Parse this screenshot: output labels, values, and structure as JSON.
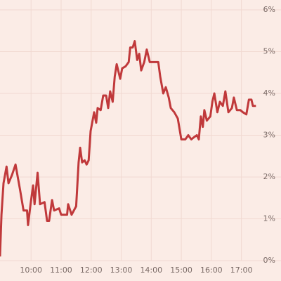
{
  "chart_data": {
    "type": "line",
    "x": [
      "08:58",
      "09:01",
      "09:05",
      "09:11",
      "09:15",
      "09:22",
      "09:29",
      "09:38",
      "09:45",
      "09:52",
      "09:54",
      "09:59",
      "10:04",
      "10:07",
      "10:13",
      "10:18",
      "10:27",
      "10:32",
      "10:36",
      "10:42",
      "10:46",
      "10:56",
      "11:00",
      "11:12",
      "11:14",
      "11:21",
      "11:30",
      "11:35",
      "11:38",
      "11:42",
      "11:47",
      "11:51",
      "11:55",
      "11:59",
      "12:06",
      "12:10",
      "12:13",
      "12:19",
      "12:24",
      "12:30",
      "12:34",
      "12:38",
      "12:43",
      "12:47",
      "12:51",
      "12:58",
      "13:02",
      "13:09",
      "13:15",
      "13:18",
      "13:23",
      "13:27",
      "13:32",
      "13:36",
      "13:40",
      "13:46",
      "13:51",
      "13:57",
      "14:04",
      "14:14",
      "14:18",
      "14:24",
      "14:29",
      "14:35",
      "14:39",
      "14:46",
      "14:53",
      "15:00",
      "15:08",
      "15:14",
      "15:20",
      "15:25",
      "15:31",
      "15:35",
      "15:39",
      "15:43",
      "15:46",
      "15:51",
      "15:58",
      "16:02",
      "16:06",
      "16:12",
      "16:17",
      "16:23",
      "16:28",
      "16:34",
      "16:41",
      "16:45",
      "16:51",
      "16:58",
      "17:03",
      "17:10",
      "17:15",
      "17:20",
      "17:23",
      "17:29"
    ],
    "series": [
      {
        "color": "#c0393b",
        "values": [
          0.1,
          1.1,
          1.85,
          2.25,
          1.85,
          2.05,
          2.3,
          1.7,
          1.2,
          1.2,
          0.85,
          1.35,
          1.8,
          1.35,
          2.1,
          1.35,
          1.4,
          0.95,
          0.95,
          1.45,
          1.2,
          1.25,
          1.1,
          1.1,
          1.35,
          1.1,
          1.3,
          2.35,
          2.7,
          2.35,
          2.4,
          2.3,
          2.4,
          3.1,
          3.55,
          3.3,
          3.65,
          3.6,
          3.95,
          3.95,
          3.65,
          4.05,
          3.8,
          4.4,
          4.7,
          4.35,
          4.6,
          4.65,
          4.75,
          5.1,
          5.1,
          5.25,
          4.8,
          4.95,
          4.55,
          4.75,
          5.05,
          4.75,
          4.75,
          4.75,
          4.4,
          4.0,
          4.15,
          3.9,
          3.65,
          3.55,
          3.4,
          2.9,
          2.9,
          3.0,
          2.9,
          2.95,
          3.0,
          2.9,
          3.45,
          3.2,
          3.6,
          3.35,
          3.45,
          3.8,
          4.0,
          3.55,
          3.8,
          3.7,
          4.05,
          3.55,
          3.65,
          3.9,
          3.6,
          3.6,
          3.55,
          3.5,
          3.85,
          3.85,
          3.7,
          3.7
        ]
      }
    ],
    "xlim": [
      "08:58",
      "17:30"
    ],
    "xticks": [
      "10:00",
      "11:00",
      "12:00",
      "13:00",
      "14:00",
      "15:00",
      "16:00",
      "17:00"
    ],
    "ylim": [
      0,
      6
    ],
    "yticks": [
      {
        "value": 0,
        "label": "0%"
      },
      {
        "value": 1,
        "label": "1%"
      },
      {
        "value": 2,
        "label": "2%"
      },
      {
        "value": 3,
        "label": "3%"
      },
      {
        "value": 4,
        "label": "4%"
      },
      {
        "value": 5,
        "label": "5%"
      },
      {
        "value": 6,
        "label": "6%"
      }
    ],
    "grid": true
  }
}
